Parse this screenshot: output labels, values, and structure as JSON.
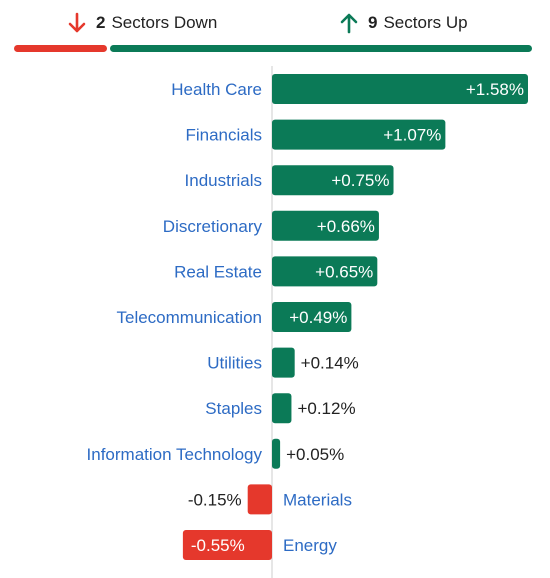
{
  "summary": {
    "down_count": "2",
    "down_label": "Sectors Down",
    "up_count": "9",
    "up_label": "Sectors Up"
  },
  "colors": {
    "up": "#0b7a57",
    "down": "#e5382c",
    "label": "#2d6bc4",
    "value_text_outside": "#222222",
    "value_text_inside": "#ffffff",
    "axis": "#cccccc"
  },
  "icons": {
    "down": "arrow-down-icon",
    "up": "arrow-up-icon"
  },
  "chart_data": {
    "type": "bar",
    "orientation": "horizontal",
    "title": "",
    "xlabel": "",
    "ylabel": "",
    "unit": "%",
    "xlim": [
      -0.55,
      1.58
    ],
    "grid": false,
    "categories": [
      "Health Care",
      "Financials",
      "Industrials",
      "Discretionary",
      "Real Estate",
      "Telecommunication",
      "Utilities",
      "Staples",
      "Information Technology",
      "Materials",
      "Energy"
    ],
    "values": [
      1.58,
      1.07,
      0.75,
      0.66,
      0.65,
      0.49,
      0.14,
      0.12,
      0.05,
      -0.15,
      -0.55
    ],
    "value_labels": [
      "+1.58%",
      "+1.07%",
      "+0.75%",
      "+0.66%",
      "+0.65%",
      "+0.49%",
      "+0.14%",
      "+0.12%",
      "+0.05%",
      "-0.15%",
      "-0.55%"
    ]
  }
}
